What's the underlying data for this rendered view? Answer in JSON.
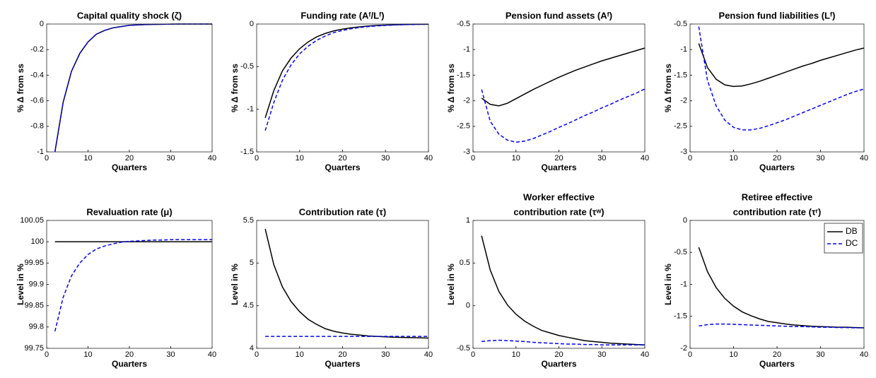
{
  "chart_data": [
    {
      "type": "line",
      "title": [
        "Capital quality shock (ζ)"
      ],
      "xlabel": "Quarters",
      "ylabel": "% Δ from ss",
      "x": [
        2,
        4,
        6,
        8,
        10,
        12,
        14,
        16,
        18,
        20,
        22,
        24,
        26,
        28,
        30,
        32,
        34,
        36,
        38,
        40
      ],
      "xlim": [
        0,
        40
      ],
      "xticks": [
        0,
        10,
        20,
        30,
        40
      ],
      "ylim": [
        -1,
        0
      ],
      "yticks": [
        -1,
        -0.8,
        -0.6,
        -0.4,
        -0.2,
        0
      ],
      "series": [
        {
          "color": "#000000",
          "style": "solid",
          "values": [
            -1,
            -0.61,
            -0.37,
            -0.23,
            -0.14,
            -0.08,
            -0.05,
            -0.03,
            -0.02,
            -0.01,
            -0.007,
            -0.004,
            -0.003,
            -0.002,
            -0.001,
            0,
            0,
            0,
            0,
            0
          ]
        },
        {
          "color": "#0000ff",
          "style": "dashed",
          "values": [
            -1,
            -0.61,
            -0.37,
            -0.23,
            -0.14,
            -0.08,
            -0.05,
            -0.03,
            -0.02,
            -0.01,
            -0.007,
            -0.004,
            -0.003,
            -0.002,
            -0.001,
            0,
            0,
            0,
            0,
            0
          ]
        }
      ]
    },
    {
      "type": "line",
      "title": [
        "Funding rate (Aᶠ/Lᶠ)"
      ],
      "xlabel": "Quarters",
      "ylabel": "% Δ from ss",
      "x": [
        2,
        4,
        6,
        8,
        10,
        12,
        14,
        16,
        18,
        20,
        22,
        24,
        26,
        28,
        30,
        32,
        34,
        36,
        38,
        40
      ],
      "xlim": [
        0,
        40
      ],
      "xticks": [
        0,
        10,
        20,
        30,
        40
      ],
      "ylim": [
        -1.5,
        0
      ],
      "yticks": [
        -1.5,
        -1,
        -0.5,
        0
      ],
      "series": [
        {
          "color": "#000000",
          "style": "solid",
          "values": [
            -1.1,
            -0.78,
            -0.55,
            -0.4,
            -0.29,
            -0.21,
            -0.15,
            -0.11,
            -0.08,
            -0.06,
            -0.045,
            -0.033,
            -0.024,
            -0.017,
            -0.012,
            -0.009,
            -0.006,
            -0.004,
            -0.003,
            -0.002
          ]
        },
        {
          "color": "#0000ff",
          "style": "dashed",
          "values": [
            -1.25,
            -0.92,
            -0.66,
            -0.48,
            -0.35,
            -0.26,
            -0.19,
            -0.14,
            -0.1,
            -0.075,
            -0.055,
            -0.04,
            -0.03,
            -0.022,
            -0.016,
            -0.011,
            -0.008,
            -0.006,
            -0.004,
            -0.003
          ]
        }
      ]
    },
    {
      "type": "line",
      "title": [
        "Pension fund assets (Aᶠ)"
      ],
      "xlabel": "Quarters",
      "ylabel": "% Δ from ss",
      "x": [
        2,
        4,
        6,
        8,
        10,
        12,
        14,
        16,
        18,
        20,
        22,
        24,
        26,
        28,
        30,
        32,
        34,
        36,
        38,
        40
      ],
      "xlim": [
        0,
        40
      ],
      "xticks": [
        0,
        10,
        20,
        30,
        40
      ],
      "ylim": [
        -3,
        -0.5
      ],
      "yticks": [
        -3,
        -2.5,
        -2,
        -1.5,
        -1,
        -0.5
      ],
      "series": [
        {
          "color": "#000000",
          "style": "solid",
          "values": [
            -1.95,
            -2.07,
            -2.1,
            -2.05,
            -1.96,
            -1.87,
            -1.78,
            -1.7,
            -1.62,
            -1.54,
            -1.47,
            -1.4,
            -1.34,
            -1.28,
            -1.22,
            -1.17,
            -1.12,
            -1.07,
            -1.02,
            -0.97
          ]
        },
        {
          "color": "#0000ff",
          "style": "dashed",
          "values": [
            -1.78,
            -2.4,
            -2.65,
            -2.77,
            -2.81,
            -2.79,
            -2.74,
            -2.67,
            -2.6,
            -2.52,
            -2.45,
            -2.37,
            -2.29,
            -2.22,
            -2.14,
            -2.07,
            -1.99,
            -1.92,
            -1.85,
            -1.77
          ]
        }
      ]
    },
    {
      "type": "line",
      "title": [
        "Pension fund liabilities (Lᶠ)"
      ],
      "xlabel": "Quarters",
      "ylabel": "% Δ from ss",
      "x": [
        2,
        4,
        6,
        8,
        10,
        12,
        14,
        16,
        18,
        20,
        22,
        24,
        26,
        28,
        30,
        32,
        34,
        36,
        38,
        40
      ],
      "xlim": [
        0,
        40
      ],
      "xticks": [
        0,
        10,
        20,
        30,
        40
      ],
      "ylim": [
        -3,
        -0.5
      ],
      "yticks": [
        -3,
        -2.5,
        -2,
        -1.5,
        -1,
        -0.5
      ],
      "series": [
        {
          "color": "#000000",
          "style": "solid",
          "values": [
            -0.88,
            -1.35,
            -1.58,
            -1.69,
            -1.72,
            -1.71,
            -1.67,
            -1.62,
            -1.56,
            -1.5,
            -1.44,
            -1.38,
            -1.32,
            -1.27,
            -1.21,
            -1.16,
            -1.11,
            -1.06,
            -1.01,
            -0.97
          ]
        },
        {
          "color": "#0000ff",
          "style": "dashed",
          "values": [
            -0.55,
            -1.6,
            -2.1,
            -2.38,
            -2.52,
            -2.57,
            -2.57,
            -2.54,
            -2.49,
            -2.43,
            -2.37,
            -2.3,
            -2.23,
            -2.16,
            -2.09,
            -2.02,
            -1.95,
            -1.88,
            -1.82,
            -1.77
          ]
        }
      ]
    },
    {
      "type": "line",
      "title": [
        "Revaluation rate (μ)"
      ],
      "xlabel": "Quarters",
      "ylabel": "Level in %",
      "x": [
        2,
        4,
        6,
        8,
        10,
        12,
        14,
        16,
        18,
        20,
        22,
        24,
        26,
        28,
        30,
        32,
        34,
        36,
        38,
        40
      ],
      "xlim": [
        0,
        40
      ],
      "xticks": [
        0,
        10,
        20,
        30,
        40
      ],
      "ylim": [
        99.75,
        100.05
      ],
      "yticks": [
        99.75,
        99.8,
        99.85,
        99.9,
        99.95,
        100,
        100.05
      ],
      "series": [
        {
          "color": "#000000",
          "style": "solid",
          "values": [
            100,
            100,
            100,
            100,
            100,
            100,
            100,
            100,
            100,
            100,
            100,
            100,
            100,
            100,
            100,
            100,
            100,
            100,
            100,
            100
          ]
        },
        {
          "color": "#0000ff",
          "style": "dashed",
          "values": [
            99.79,
            99.87,
            99.92,
            99.95,
            99.97,
            99.983,
            99.99,
            99.995,
            99.999,
            100.001,
            100.002,
            100.003,
            100.004,
            100.004,
            100.005,
            100.005,
            100.005,
            100.005,
            100.005,
            100.005
          ]
        }
      ]
    },
    {
      "type": "line",
      "title": [
        "Contribution rate (τ)"
      ],
      "xlabel": "Quarters",
      "ylabel": "Level in %",
      "x": [
        2,
        4,
        6,
        8,
        10,
        12,
        14,
        16,
        18,
        20,
        22,
        24,
        26,
        28,
        30,
        32,
        34,
        36,
        38,
        40
      ],
      "xlim": [
        0,
        40
      ],
      "xticks": [
        0,
        10,
        20,
        30,
        40
      ],
      "ylim": [
        4,
        5.5
      ],
      "yticks": [
        4,
        4.5,
        5,
        5.5
      ],
      "series": [
        {
          "color": "#000000",
          "style": "solid",
          "values": [
            5.4,
            4.98,
            4.72,
            4.55,
            4.43,
            4.34,
            4.28,
            4.23,
            4.2,
            4.18,
            4.165,
            4.155,
            4.145,
            4.14,
            4.135,
            4.13,
            4.127,
            4.125,
            4.123,
            4.12
          ]
        },
        {
          "color": "#0000ff",
          "style": "dashed",
          "values": [
            4.14,
            4.14,
            4.14,
            4.14,
            4.14,
            4.14,
            4.14,
            4.14,
            4.14,
            4.14,
            4.14,
            4.14,
            4.14,
            4.14,
            4.14,
            4.14,
            4.14,
            4.14,
            4.14,
            4.14
          ]
        }
      ]
    },
    {
      "type": "line",
      "title": [
        "Worker effective",
        "contribution rate (τʷ)"
      ],
      "xlabel": "Quarters",
      "ylabel": "Level in %",
      "x": [
        2,
        4,
        6,
        8,
        10,
        12,
        14,
        16,
        18,
        20,
        22,
        24,
        26,
        28,
        30,
        32,
        34,
        36,
        38,
        40
      ],
      "xlim": [
        0,
        40
      ],
      "xticks": [
        0,
        10,
        20,
        30,
        40
      ],
      "ylim": [
        -0.5,
        1
      ],
      "yticks": [
        -0.5,
        0,
        0.5,
        1
      ],
      "series": [
        {
          "color": "#000000",
          "style": "solid",
          "values": [
            0.82,
            0.42,
            0.17,
            0.01,
            -0.1,
            -0.18,
            -0.24,
            -0.29,
            -0.32,
            -0.35,
            -0.37,
            -0.39,
            -0.41,
            -0.42,
            -0.43,
            -0.44,
            -0.445,
            -0.45,
            -0.455,
            -0.46
          ]
        },
        {
          "color": "#0000ff",
          "style": "dashed",
          "values": [
            -0.42,
            -0.41,
            -0.405,
            -0.41,
            -0.415,
            -0.42,
            -0.43,
            -0.435,
            -0.44,
            -0.445,
            -0.45,
            -0.45,
            -0.455,
            -0.455,
            -0.46,
            -0.46,
            -0.46,
            -0.46,
            -0.46,
            -0.46
          ]
        }
      ]
    },
    {
      "type": "line",
      "title": [
        "Retiree effective",
        "contribution rate (τʳ)"
      ],
      "xlabel": "Quarters",
      "ylabel": "Level in %",
      "x": [
        2,
        4,
        6,
        8,
        10,
        12,
        14,
        16,
        18,
        20,
        22,
        24,
        26,
        28,
        30,
        32,
        34,
        36,
        38,
        40
      ],
      "xlim": [
        0,
        40
      ],
      "xticks": [
        0,
        10,
        20,
        30,
        40
      ],
      "ylim": [
        -2,
        0
      ],
      "yticks": [
        -2,
        -1.5,
        -1,
        -0.5,
        0
      ],
      "legend": "upper right",
      "series": [
        {
          "name": "DB",
          "color": "#000000",
          "style": "solid",
          "values": [
            -0.42,
            -0.8,
            -1.05,
            -1.22,
            -1.34,
            -1.43,
            -1.49,
            -1.54,
            -1.58,
            -1.6,
            -1.62,
            -1.635,
            -1.645,
            -1.655,
            -1.66,
            -1.665,
            -1.67,
            -1.67,
            -1.675,
            -1.68
          ]
        },
        {
          "name": "DC",
          "color": "#0000ff",
          "style": "dashed",
          "values": [
            -1.65,
            -1.63,
            -1.62,
            -1.62,
            -1.625,
            -1.63,
            -1.635,
            -1.64,
            -1.645,
            -1.65,
            -1.655,
            -1.66,
            -1.66,
            -1.665,
            -1.67,
            -1.67,
            -1.675,
            -1.675,
            -1.68,
            -1.68
          ]
        }
      ]
    }
  ]
}
